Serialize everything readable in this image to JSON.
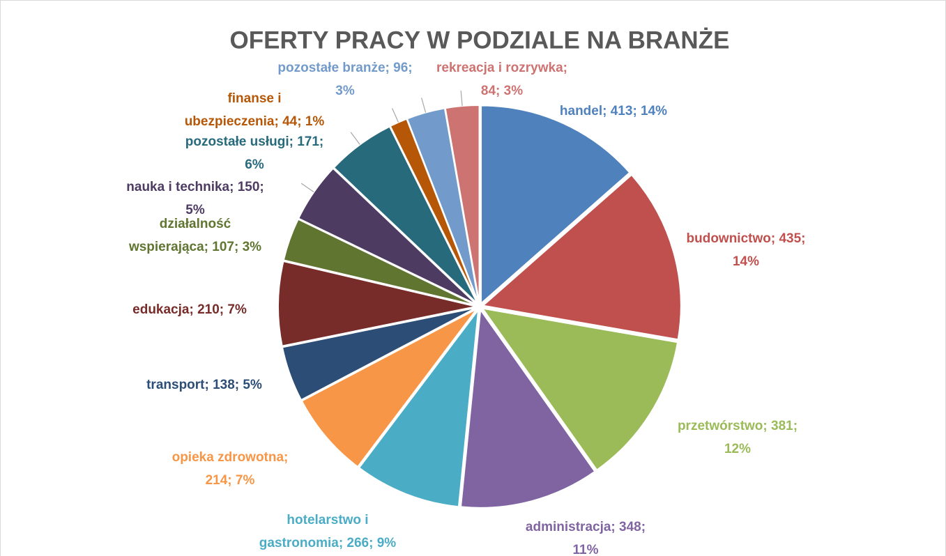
{
  "chart_data": {
    "type": "pie",
    "title": "OFERTY PRACY W PODZIALE NA BRANŻE",
    "values": [
      413,
      435,
      381,
      348,
      266,
      214,
      138,
      210,
      107,
      150,
      171,
      44,
      96,
      84
    ],
    "value_labels": [
      "handel; 413; 14%",
      "budownictwo; 435; 14%",
      "przetwórstwo; 381; 12%",
      "administracja; 348; 11%",
      "hotelarstwo i gastronomia; 266; 9%",
      "opieka zdrowotna; 214; 7%",
      "transport; 138; 5%",
      "edukacja; 210; 7%",
      "działalność wspierająca; 107; 3%",
      "nauka i technika; 150; 5%",
      "pozostałe usługi; 171; 6%",
      "finanse i ubezpieczenia; 44; 1%",
      "pozostałe branże; 96; 3%",
      "rekreacja i rozrywka; 84; 3%"
    ],
    "colors": [
      "#4f81bd",
      "#c0504d",
      "#9bbb59",
      "#8064a2",
      "#4bacc6",
      "#f79646",
      "#2c4d75",
      "#772c2a",
      "#5f7530",
      "#4d3b62",
      "#276a7c",
      "#b65708",
      "#729aca",
      "#cd7371"
    ]
  }
}
